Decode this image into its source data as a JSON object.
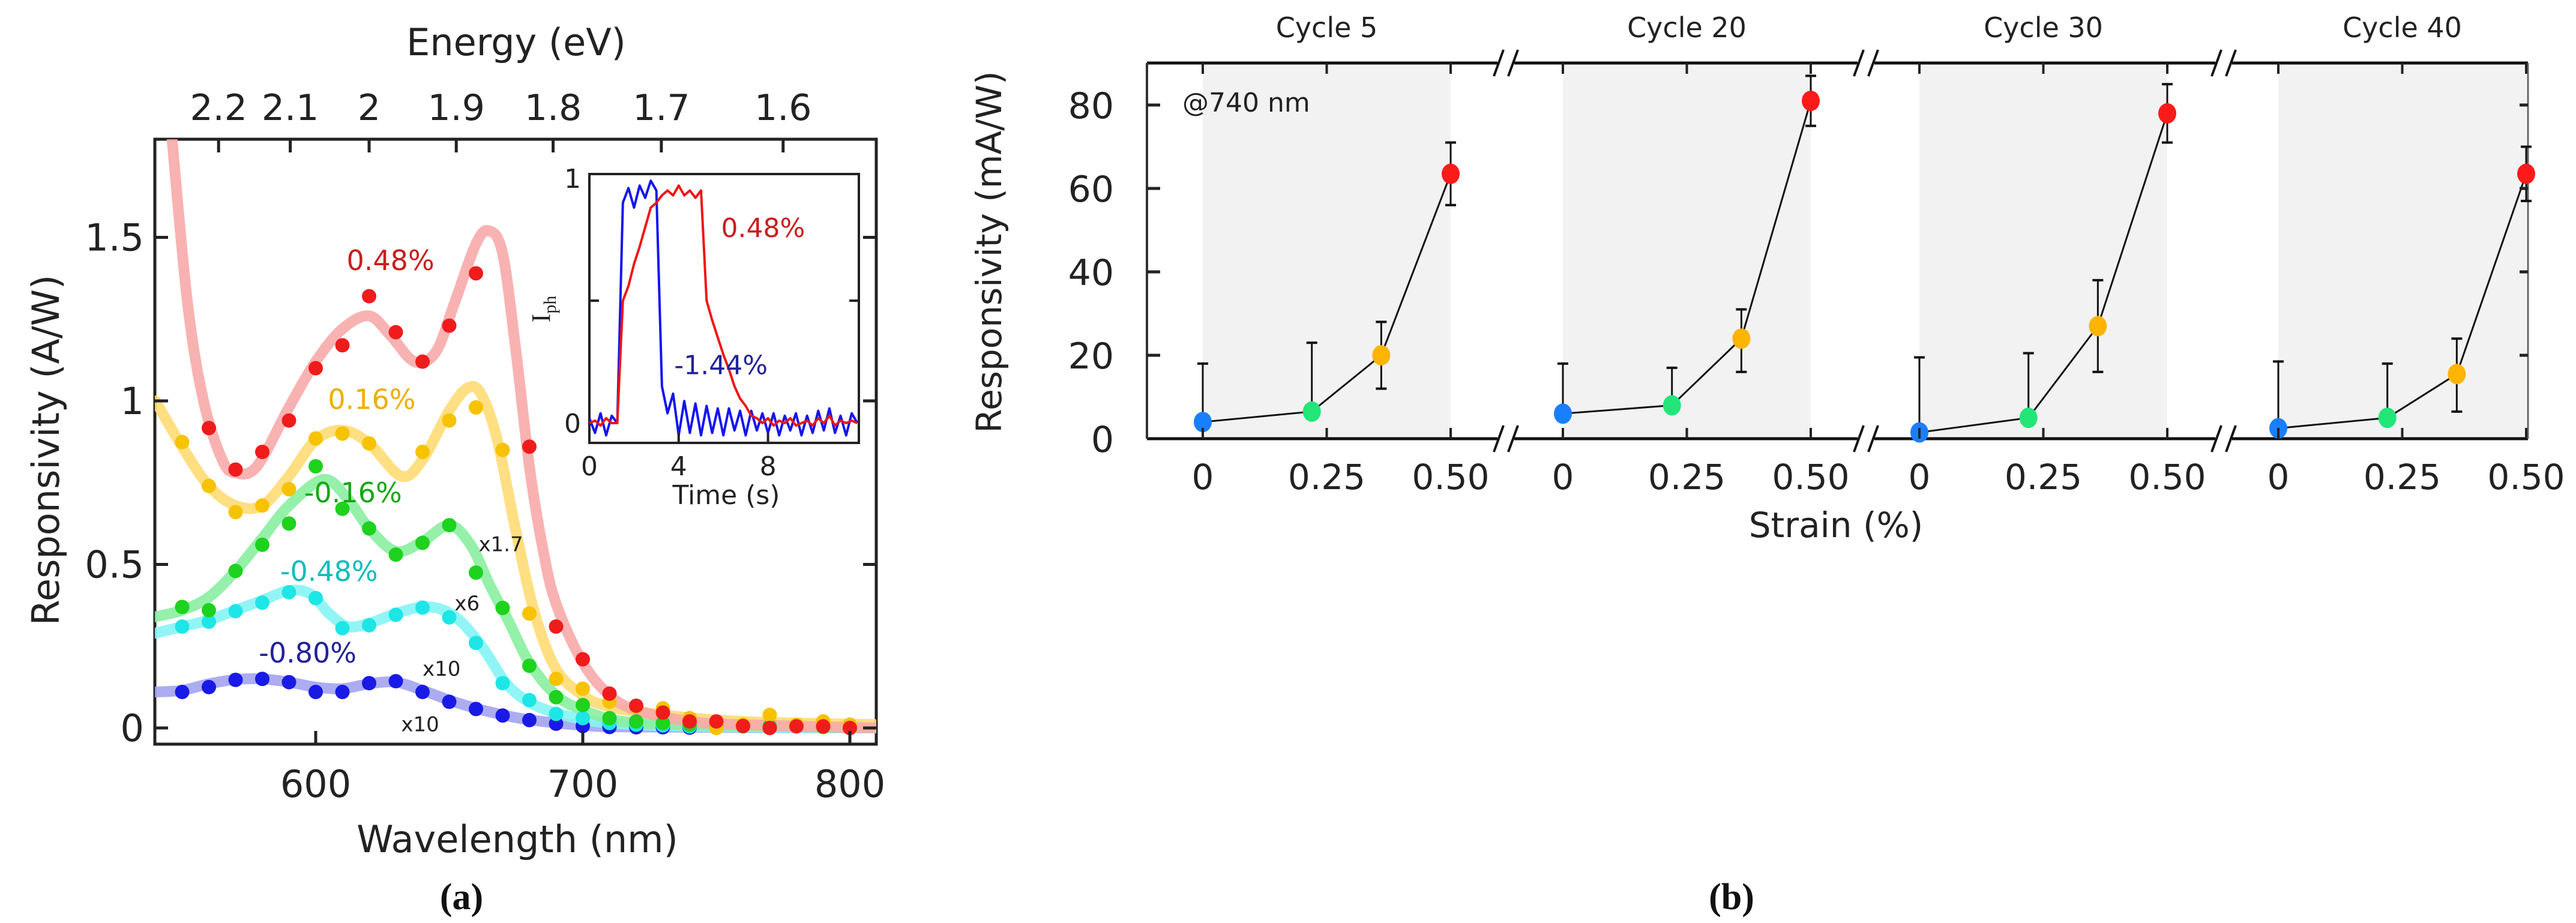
{
  "figure": {
    "panel_a_label": "(a)",
    "panel_b_label": "(b)"
  },
  "chart_data": [
    {
      "id": "panel_a",
      "type": "scatter",
      "title": "",
      "xlabel": "Wavelength (nm)",
      "x2label": "Energy (eV)",
      "ylabel": "Responsivity (A/W)",
      "xlim": [
        540,
        810
      ],
      "ylim": [
        -0.05,
        1.8
      ],
      "xticks": [
        600,
        700,
        800
      ],
      "xtick_labels": [
        "600",
        "700",
        "800"
      ],
      "yticks": [
        0,
        0.5,
        1,
        1.5
      ],
      "ytick_labels": [
        "0",
        "0.5",
        "1",
        "1.5"
      ],
      "x2ticks_ev": [
        2.2,
        2.1,
        2,
        1.9,
        1.8,
        1.7,
        1.6
      ],
      "x2tick_labels": [
        "2.2",
        "2.1",
        "2",
        "1.9",
        "1.8",
        "1.7",
        "1.6"
      ],
      "grid": false,
      "series": [
        {
          "name": "-0.80%",
          "color": "#1a1ae6",
          "fit_color": "#a3a3f2",
          "label_color": "#22229a",
          "points": {
            "x": [
              550,
              560,
              570,
              580,
              590,
              600,
              610,
              620,
              630,
              640,
              650,
              660,
              670,
              680,
              690,
              700,
              710,
              720,
              730,
              740
            ],
            "y": [
              0.11,
              0.125,
              0.147,
              0.15,
              0.14,
              0.11,
              0.11,
              0.137,
              0.143,
              0.11,
              0.08,
              0.058,
              0.038,
              0.024,
              0.013,
              0.006,
              0.003,
              0.002,
              0.002,
              0.001
            ]
          },
          "fit": {
            "x": [
              540,
              550,
              560,
              570,
              580,
              590,
              600,
              610,
              620,
              630,
              640,
              650,
              660,
              670,
              680,
              700,
              720,
              810
            ],
            "y": [
              0.11,
              0.115,
              0.135,
              0.148,
              0.15,
              0.14,
              0.125,
              0.12,
              0.135,
              0.14,
              0.115,
              0.085,
              0.06,
              0.04,
              0.025,
              0.008,
              0.003,
              0
            ]
          }
        },
        {
          "name": "-0.48%",
          "color": "#1ee6e6",
          "fit_color": "#86f4f4",
          "label_color": "#12bcbc",
          "points": {
            "x": [
              550,
              560,
              570,
              580,
              590,
              600,
              610,
              620,
              630,
              640,
              650,
              660,
              670,
              680,
              690,
              700,
              710,
              720,
              730,
              740
            ],
            "y": [
              0.31,
              0.325,
              0.357,
              0.383,
              0.415,
              0.397,
              0.305,
              0.314,
              0.346,
              0.368,
              0.338,
              0.26,
              0.137,
              0.085,
              0.043,
              0.03,
              0.015,
              0.01,
              0.008,
              0.005
            ]
          },
          "fit": {
            "x": [
              540,
              550,
              560,
              570,
              580,
              590,
              598,
              605,
              612,
              620,
              630,
              640,
              648,
              655,
              663,
              672,
              682,
              695,
              710,
              740,
              810
            ],
            "y": [
              0.29,
              0.31,
              0.33,
              0.36,
              0.39,
              0.42,
              0.41,
              0.35,
              0.31,
              0.32,
              0.35,
              0.37,
              0.36,
              0.32,
              0.24,
              0.13,
              0.07,
              0.035,
              0.015,
              0.005,
              0
            ]
          }
        },
        {
          "name": "-0.16%",
          "color": "#1ed21e",
          "fit_color": "#8aeea0",
          "label_color": "#14a814",
          "points": {
            "x": [
              550,
              560,
              570,
              580,
              590,
              600,
              610,
              620,
              630,
              640,
              650,
              660,
              670,
              680,
              690,
              700,
              710,
              720,
              730,
              740,
              750,
              760,
              770,
              780,
              790,
              800
            ],
            "y": [
              0.37,
              0.36,
              0.48,
              0.56,
              0.625,
              0.8,
              0.67,
              0.61,
              0.53,
              0.566,
              0.62,
              0.475,
              0.367,
              0.19,
              0.094,
              0.07,
              0.03,
              0.02,
              0.015,
              0.01,
              0.005,
              0.005,
              0.005,
              0.008,
              0.003,
              0
            ]
          },
          "fit": {
            "x": [
              540,
              550,
              560,
              570,
              580,
              590,
              603,
              612,
              620,
              630,
              640,
              650,
              658,
              665,
              672,
              680,
              690,
              700,
              715,
              740,
              810
            ],
            "y": [
              0.34,
              0.36,
              0.4,
              0.48,
              0.58,
              0.68,
              0.76,
              0.7,
              0.61,
              0.54,
              0.57,
              0.62,
              0.56,
              0.44,
              0.33,
              0.2,
              0.1,
              0.055,
              0.02,
              0.01,
              0
            ]
          }
        },
        {
          "name": "0.16%",
          "color": "#f7c200",
          "fit_color": "#ffdc74",
          "label_color": "#eeae00",
          "points": {
            "x": [
              550,
              560,
              570,
              580,
              590,
              600,
              610,
              620,
              640,
              650,
              660,
              670,
              680,
              690,
              700,
              710,
              720,
              730,
              740,
              750,
              760,
              770,
              780,
              790,
              800
            ],
            "y": [
              0.874,
              0.74,
              0.66,
              0.68,
              0.73,
              0.885,
              0.9,
              0.87,
              0.844,
              0.94,
              0.98,
              0.85,
              0.35,
              0.15,
              0.12,
              0.08,
              0.065,
              0.06,
              0.03,
              0,
              0.01,
              0.04,
              0.01,
              0.02,
              0.01
            ]
          },
          "fit": {
            "x": [
              540,
              550,
              560,
              570,
              580,
              590,
              600,
              610,
              620,
              632,
              640,
              650,
              657,
              662,
              668,
              675,
              682,
              690,
              700,
              710,
              730,
              760,
              810
            ],
            "y": [
              1.0,
              0.86,
              0.74,
              0.68,
              0.68,
              0.77,
              0.88,
              0.91,
              0.87,
              0.77,
              0.82,
              0.97,
              1.04,
              1.02,
              0.88,
              0.6,
              0.35,
              0.18,
              0.1,
              0.065,
              0.04,
              0.02,
              0.01
            ]
          }
        },
        {
          "name": "0.48%",
          "color": "#f01c1c",
          "fit_color": "#f8aaaa",
          "label_color": "#c81e1e",
          "points": {
            "x": [
              560,
              570,
              580,
              590,
              600,
              610,
              620,
              630,
              640,
              650,
              660,
              680,
              690,
              700,
              710,
              720,
              730,
              740,
              750,
              760,
              770,
              780,
              790,
              800
            ],
            "y": [
              0.917,
              0.79,
              0.844,
              0.94,
              1.1,
              1.17,
              1.32,
              1.21,
              1.12,
              1.23,
              1.39,
              0.86,
              0.31,
              0.21,
              0.105,
              0.068,
              0.047,
              0.02,
              0.02,
              0.006,
              0,
              0.005,
              0.005,
              0
            ]
          },
          "fit": {
            "x": [
              546,
              552,
              558,
              565,
              570,
              578,
              590,
              600,
              610,
              620,
              628,
              637,
              645,
              652,
              660,
              665,
              670,
              675,
              680,
              685,
              690,
              700,
              710,
              720,
              740,
              760,
              810
            ],
            "y": [
              1.82,
              1.3,
              1.0,
              0.82,
              0.78,
              0.8,
              0.98,
              1.12,
              1.22,
              1.26,
              1.2,
              1.12,
              1.15,
              1.3,
              1.48,
              1.52,
              1.45,
              1.15,
              0.8,
              0.55,
              0.38,
              0.2,
              0.1,
              0.055,
              0.02,
              0.01,
              0
            ]
          }
        }
      ],
      "scale_annotations": [
        "x1.7",
        "x6",
        "x10",
        "x10"
      ],
      "inset": {
        "type": "line",
        "xlabel": "Time (s)",
        "ylabel": "I",
        "ylabel_sub": "ph",
        "xlim": [
          0,
          12
        ],
        "ylim": [
          -0.08,
          1
        ],
        "xticks": [
          0,
          4,
          8
        ],
        "xtick_labels": [
          "0",
          "4",
          "8"
        ],
        "yticks": [
          0,
          1
        ],
        "ytick_labels": [
          "0",
          "1"
        ],
        "t_step": 0.25,
        "series": [
          {
            "name": "-1.44%",
            "color": "#1414f0",
            "y": [
              0.02,
              -0.04,
              0.04,
              -0.05,
              0.03,
              0.0,
              0.9,
              0.96,
              0.88,
              0.97,
              0.92,
              0.99,
              0.95,
              0.15,
              0.04,
              0.12,
              -0.05,
              0.09,
              -0.04,
              0.08,
              -0.05,
              0.07,
              -0.04,
              0.06,
              -0.05,
              0.06,
              -0.03,
              0.05,
              -0.05,
              0.05,
              -0.03,
              0.04,
              -0.04,
              0.04,
              -0.05,
              0.03,
              -0.03,
              0.04,
              -0.05,
              0.03,
              -0.04,
              0.05,
              -0.03,
              0.06,
              -0.04,
              0.03,
              -0.05,
              0.04,
              0.0
            ]
          },
          {
            "name": "0.48%",
            "color": "#f01414",
            "y": [
              0.0,
              0.01,
              -0.01,
              0.02,
              0.0,
              0.0,
              0.5,
              0.56,
              0.65,
              0.72,
              0.8,
              0.88,
              0.9,
              0.93,
              0.95,
              0.93,
              0.97,
              0.93,
              0.95,
              0.92,
              0.95,
              0.5,
              0.42,
              0.35,
              0.28,
              0.22,
              0.15,
              0.1,
              0.07,
              0.03,
              0.02,
              0.0,
              0.02,
              -0.01,
              0.01,
              0.0,
              0.02,
              -0.01,
              0.0,
              0.01,
              -0.01,
              0.02,
              0.0,
              0.03,
              -0.01,
              0.01,
              0.0,
              0.01,
              0.0
            ]
          }
        ]
      }
    },
    {
      "id": "panel_b",
      "type": "scatter",
      "title": "",
      "xlabel": "Strain (%)",
      "ylabel": "Responsivity (mA/W)",
      "ylim": [
        0,
        90
      ],
      "yticks": [
        0,
        20,
        40,
        60,
        80
      ],
      "ytick_labels": [
        "0",
        "20",
        "40",
        "60",
        "80"
      ],
      "xticks": [
        0,
        0.25,
        0.5
      ],
      "xtick_labels": [
        "0",
        "0.25",
        "0.50"
      ],
      "annotation": "@740 nm",
      "grid": false,
      "point_colors": [
        "#1a7fff",
        "#22e678",
        "#ffb400",
        "#ff1a1a"
      ],
      "panels": [
        {
          "title": "Cycle 5",
          "x": [
            0,
            0.22,
            0.36,
            0.5
          ],
          "y": [
            4,
            6.5,
            20,
            63.5
          ],
          "err_low": [
            4,
            6.5,
            12,
            56
          ],
          "err_high": [
            18,
            23,
            28,
            71
          ]
        },
        {
          "title": "Cycle 20",
          "x": [
            0,
            0.22,
            0.36,
            0.5
          ],
          "y": [
            6,
            8,
            24,
            81
          ],
          "err_low": [
            6,
            8,
            16,
            75
          ],
          "err_high": [
            18,
            17,
            31,
            87
          ]
        },
        {
          "title": "Cycle 30",
          "x": [
            0,
            0.22,
            0.36,
            0.5
          ],
          "y": [
            1.5,
            5,
            27,
            78
          ],
          "err_low": [
            1.5,
            5,
            16,
            71
          ],
          "err_high": [
            19.5,
            20.5,
            38,
            85
          ]
        },
        {
          "title": "Cycle 40",
          "x": [
            0,
            0.22,
            0.36,
            0.5
          ],
          "y": [
            2.5,
            5,
            15.5,
            63.5
          ],
          "err_low": [
            2.5,
            5,
            6.5,
            57
          ],
          "err_high": [
            18.5,
            18,
            24,
            70
          ]
        }
      ]
    }
  ]
}
